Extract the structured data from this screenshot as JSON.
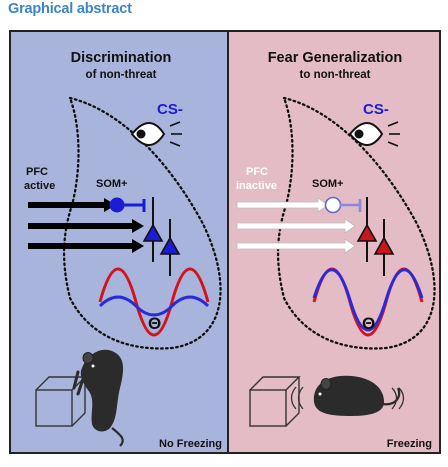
{
  "header": {
    "title": "Graphical abstract"
  },
  "left_panel": {
    "heading": "Discrimination",
    "subheading": "of non-threat",
    "cs_label": "CS-",
    "pfc_line1": "PFC",
    "pfc_line2": "active",
    "som_label": "SOM+",
    "theta_label": "Θ",
    "outcome": "No Freezing"
  },
  "right_panel": {
    "heading": "Fear Generalization",
    "subheading": "to non-threat",
    "cs_label": "CS-",
    "pfc_line1": "PFC",
    "pfc_line2": "inactive",
    "som_label": "SOM+",
    "theta_label": "Θ",
    "outcome": "Freezing"
  },
  "colors": {
    "title": "#3d86c6",
    "left_bg": "#a9b4dc",
    "right_bg": "#e4bcc6",
    "neuron_blue": "#1c1cd6",
    "neuron_red": "#c8161a",
    "wave_red": "#d4141c",
    "wave_blue": "#2a2ad8"
  }
}
